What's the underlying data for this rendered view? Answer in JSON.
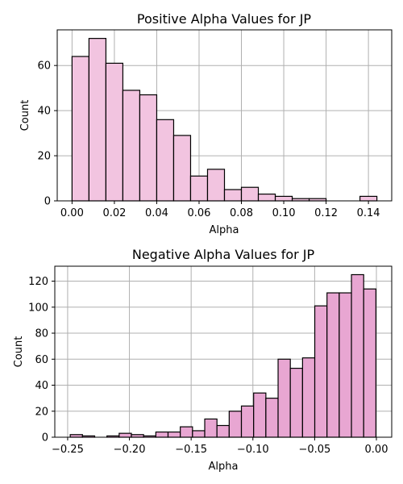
{
  "chart_data": [
    {
      "type": "histogram",
      "title": "Positive Alpha Values for JP",
      "xlabel": "Alpha",
      "ylabel": "Count",
      "color": "#f2c4e0",
      "grid": true,
      "xlim": [
        -0.007,
        0.151
      ],
      "ylim": [
        0,
        75.8
      ],
      "bin_width": 0.008,
      "bin_starts": [
        0.0,
        0.008,
        0.016,
        0.024,
        0.032,
        0.04,
        0.048,
        0.056,
        0.064,
        0.072,
        0.08,
        0.088,
        0.096,
        0.104,
        0.112,
        0.12,
        0.128,
        0.136
      ],
      "counts": [
        64,
        72,
        61,
        49,
        47,
        36,
        29,
        11,
        14,
        5,
        6,
        3,
        2,
        1,
        1,
        0,
        0,
        2
      ],
      "xticks": [
        0.0,
        0.02,
        0.04,
        0.06,
        0.08,
        0.1,
        0.12,
        0.14
      ],
      "xtick_labels": [
        "0.00",
        "0.02",
        "0.04",
        "0.06",
        "0.08",
        "0.10",
        "0.12",
        "0.14"
      ],
      "yticks": [
        0,
        20,
        40,
        60
      ],
      "ytick_labels": [
        "0",
        "20",
        "40",
        "60"
      ]
    },
    {
      "type": "histogram",
      "title": "Negative Alpha Values for JP",
      "xlabel": "Alpha",
      "ylabel": "Count",
      "color": "#e8a6d2",
      "grid": true,
      "xlim": [
        -0.2604,
        0.0124
      ],
      "ylim": [
        0,
        131.5
      ],
      "bin_width": 0.0099,
      "bin_starts": [
        -0.2479,
        -0.238,
        -0.2281,
        -0.2182,
        -0.2083,
        -0.1984,
        -0.1885,
        -0.1786,
        -0.1687,
        -0.1588,
        -0.1489,
        -0.139,
        -0.1291,
        -0.1192,
        -0.1093,
        -0.0994,
        -0.0895,
        -0.0796,
        -0.0697,
        -0.0598,
        -0.0499,
        -0.04,
        -0.0301,
        -0.0202,
        -0.0103
      ],
      "counts": [
        2,
        1,
        0,
        1,
        3,
        2,
        1,
        4,
        4,
        8,
        5,
        14,
        9,
        20,
        24,
        34,
        30,
        60,
        53,
        61,
        101,
        111,
        111,
        125,
        114
      ],
      "xticks": [
        -0.25,
        -0.2,
        -0.15,
        -0.1,
        -0.05,
        0.0
      ],
      "xtick_labels": [
        "−0.25",
        "−0.20",
        "−0.15",
        "−0.10",
        "−0.05",
        "0.00"
      ],
      "yticks": [
        0,
        20,
        40,
        60,
        80,
        100,
        120
      ],
      "ytick_labels": [
        "0",
        "20",
        "40",
        "60",
        "80",
        "100",
        "120"
      ]
    }
  ]
}
